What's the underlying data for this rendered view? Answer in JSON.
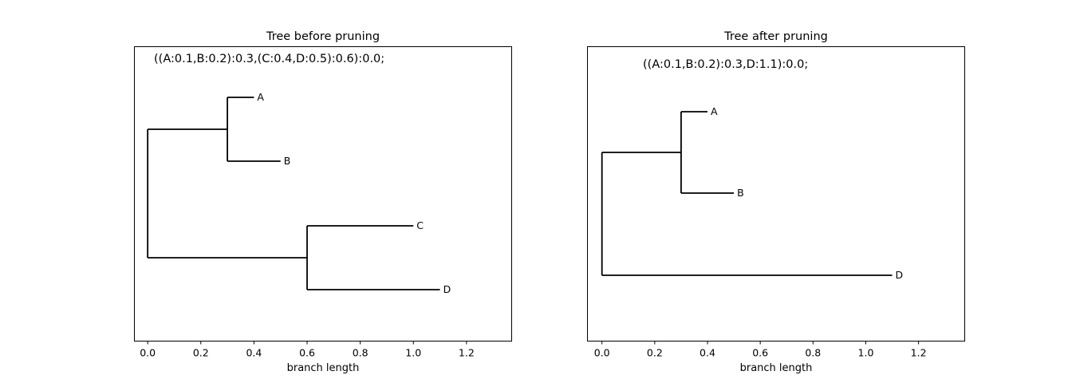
{
  "chart_data": [
    {
      "type": "tree",
      "title": "Tree before pruning",
      "xlabel": "branch length",
      "annotation": "((A:0.1,B:0.2):0.3,(C:0.4,D:0.5):0.6):0.0;",
      "xlim": [
        -0.05,
        1.37
      ],
      "xticks": [
        "0.0",
        "0.2",
        "0.4",
        "0.6",
        "0.8",
        "1.0",
        "1.2"
      ],
      "leaves": [
        {
          "label": "A",
          "x": 0.4
        },
        {
          "label": "B",
          "x": 0.5
        },
        {
          "label": "C",
          "x": 1.0
        },
        {
          "label": "D",
          "x": 1.1
        }
      ],
      "nodes": [
        {
          "name": "root",
          "x": 0.0,
          "children": [
            "AB",
            "CD"
          ]
        },
        {
          "name": "AB",
          "x": 0.3,
          "children": [
            "A",
            "B"
          ]
        },
        {
          "name": "CD",
          "x": 0.6,
          "children": [
            "C",
            "D"
          ]
        }
      ]
    },
    {
      "type": "tree",
      "title": "Tree after pruning",
      "xlabel": "branch length",
      "annotation": "((A:0.1,B:0.2):0.3,D:1.1):0.0;",
      "xlim": [
        -0.055,
        1.375
      ],
      "xticks": [
        "0.0",
        "0.2",
        "0.4",
        "0.6",
        "0.8",
        "1.0",
        "1.2"
      ],
      "leaves": [
        {
          "label": "A",
          "x": 0.4
        },
        {
          "label": "B",
          "x": 0.5
        },
        {
          "label": "D",
          "x": 1.1
        }
      ],
      "nodes": [
        {
          "name": "root",
          "x": 0.0,
          "children": [
            "AB",
            "D"
          ]
        },
        {
          "name": "AB",
          "x": 0.3,
          "children": [
            "A",
            "B"
          ]
        }
      ]
    }
  ]
}
